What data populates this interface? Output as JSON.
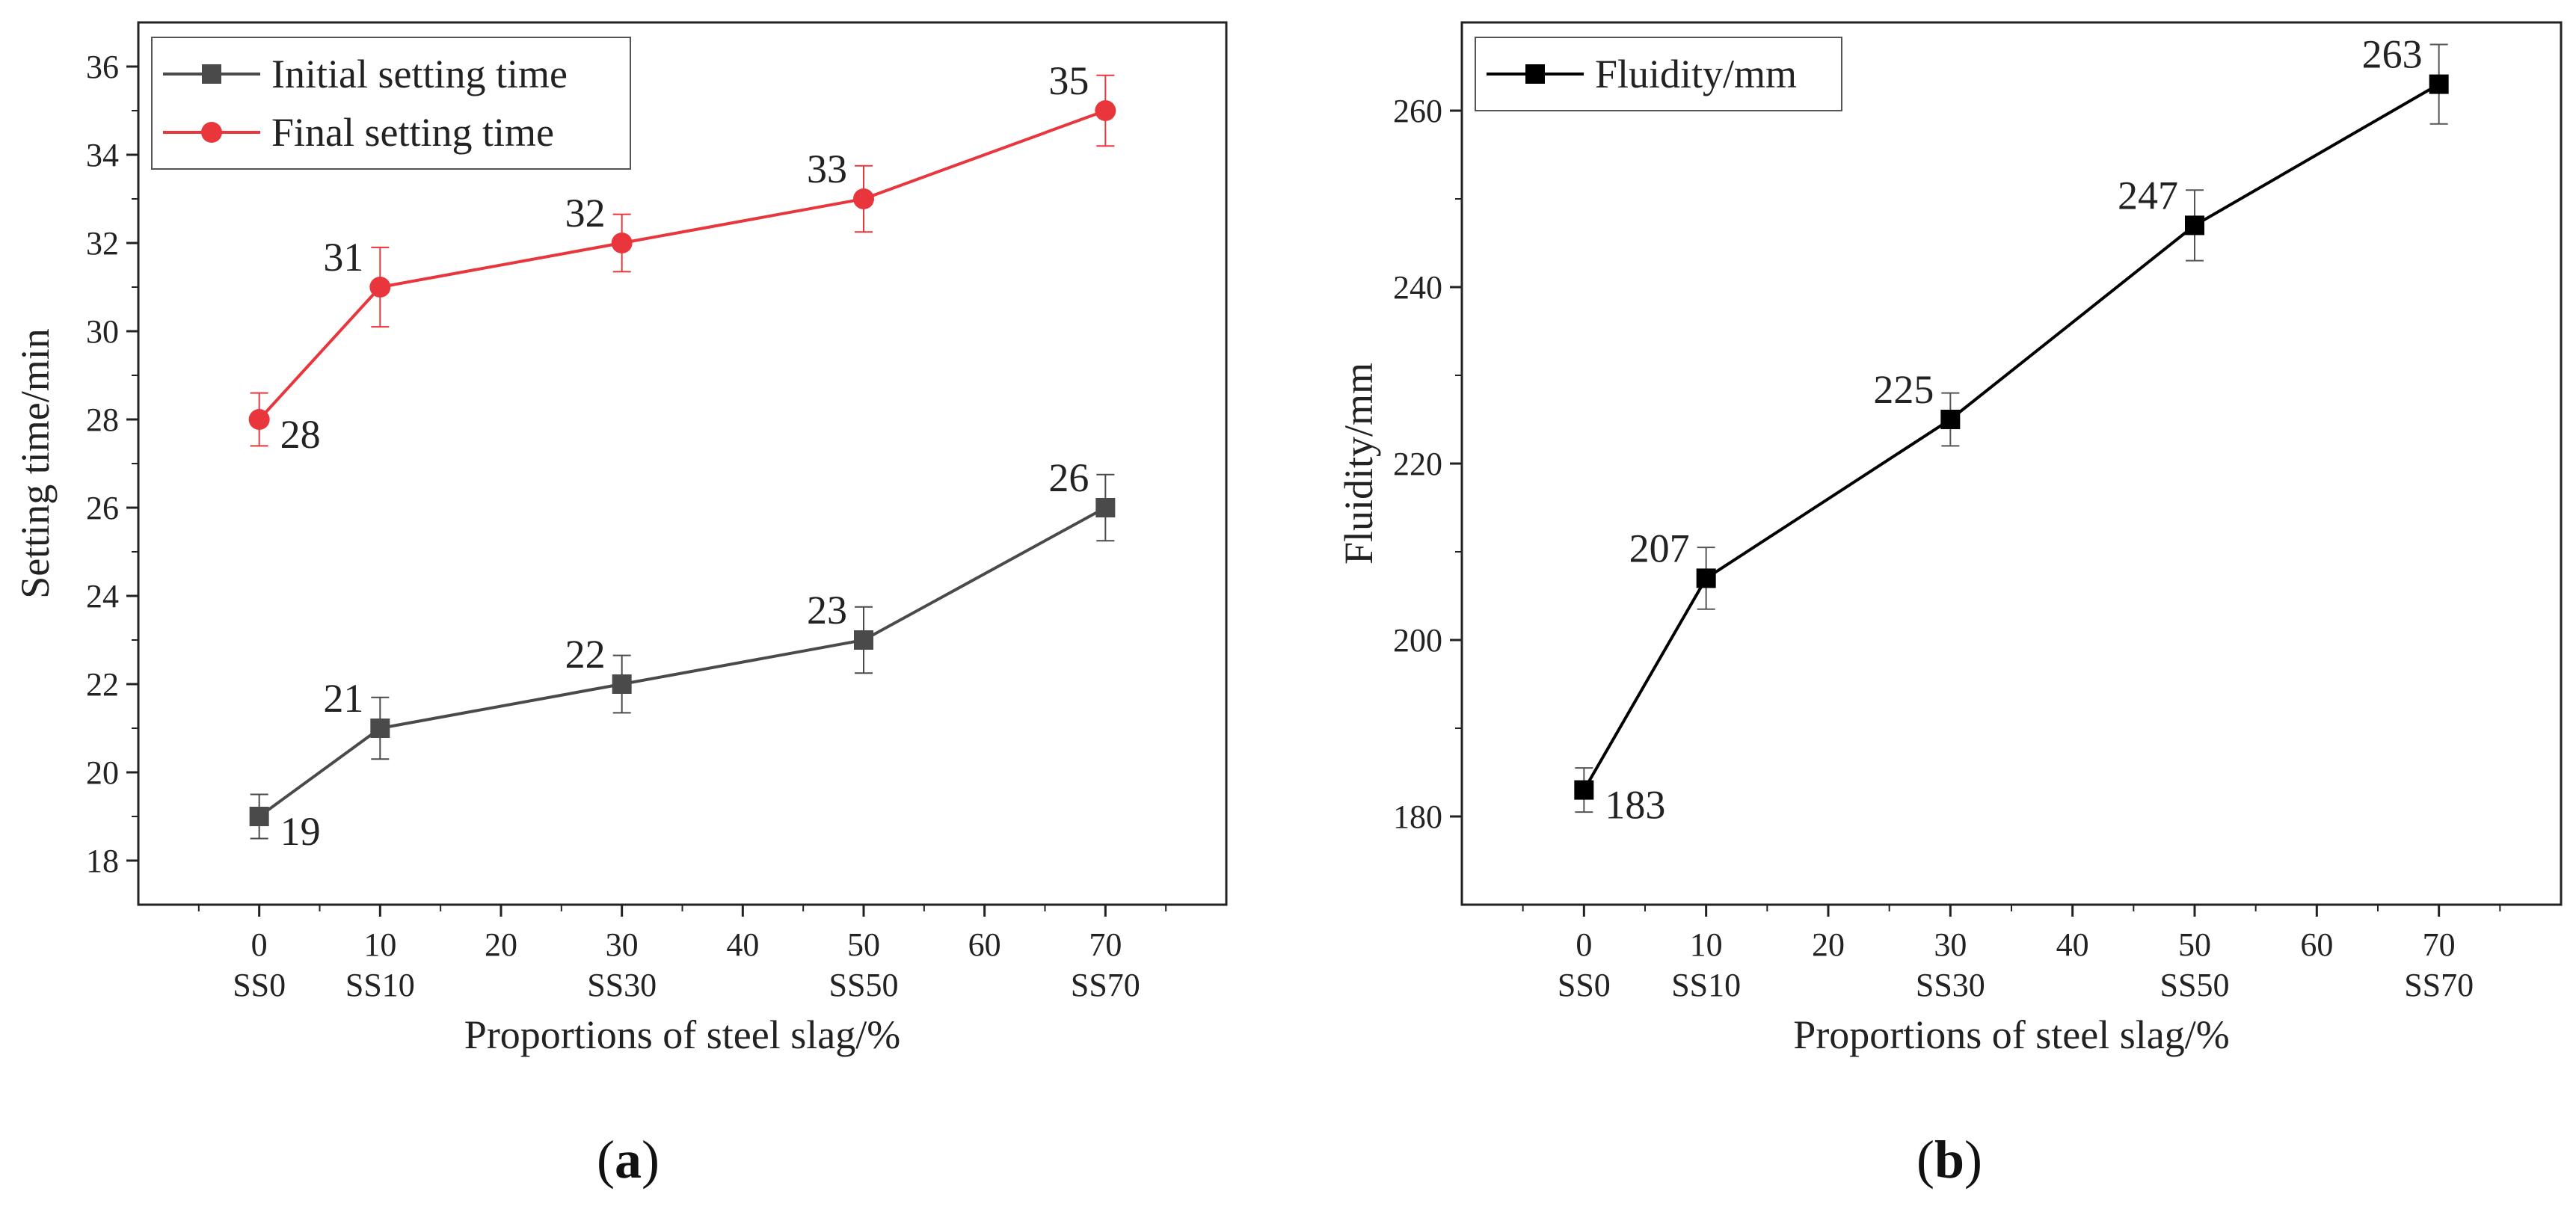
{
  "figure": {
    "panels": [
      "(a)",
      "(b)"
    ],
    "panel_letters": [
      "a",
      "b"
    ]
  },
  "chart_data": [
    {
      "type": "line",
      "panel": "(a)",
      "title": "",
      "xlabel": "Proportions of steel slag/%",
      "ylabel": "Setting time/min",
      "xlim": [
        -10,
        80
      ],
      "ylim": [
        17,
        37
      ],
      "x_ticks": [
        0,
        10,
        20,
        30,
        40,
        50,
        60,
        70
      ],
      "x_sub_labels": [
        {
          "x": 0,
          "label": "SS0"
        },
        {
          "x": 10,
          "label": "SS10"
        },
        {
          "x": 30,
          "label": "SS30"
        },
        {
          "x": 50,
          "label": "SS50"
        },
        {
          "x": 70,
          "label": "SS70"
        }
      ],
      "y_ticks": [
        18,
        20,
        22,
        24,
        26,
        28,
        30,
        32,
        34,
        36
      ],
      "legend_position": "top-left",
      "series": [
        {
          "name": "Initial setting time",
          "color": "#4a4a4a",
          "marker": "square",
          "x": [
            0,
            10,
            30,
            50,
            70
          ],
          "values": [
            19,
            21,
            22,
            23,
            26
          ],
          "errors": [
            0.5,
            0.7,
            0.65,
            0.75,
            0.75
          ],
          "labels": [
            "19",
            "21",
            "22",
            "23",
            "26"
          ],
          "label_offsets": [
            "below-right",
            "above-left",
            "above-left",
            "above-left",
            "above-left"
          ]
        },
        {
          "name": "Final setting time",
          "color": "#e8363c",
          "marker": "circle",
          "x": [
            0,
            10,
            30,
            50,
            70
          ],
          "values": [
            28,
            31,
            32,
            33,
            35
          ],
          "errors": [
            0.6,
            0.9,
            0.65,
            0.75,
            0.8
          ],
          "labels": [
            "28",
            "31",
            "32",
            "33",
            "35"
          ],
          "label_offsets": [
            "below-right",
            "above-left",
            "above-left",
            "above-left",
            "above-left"
          ]
        }
      ]
    },
    {
      "type": "line",
      "panel": "(b)",
      "title": "",
      "xlabel": "Proportions of steel slag/%",
      "ylabel": "Fluidity/mm",
      "xlim": [
        -10,
        80
      ],
      "ylim": [
        170,
        270
      ],
      "x_ticks": [
        0,
        10,
        20,
        30,
        40,
        50,
        60,
        70
      ],
      "x_sub_labels": [
        {
          "x": 0,
          "label": "SS0"
        },
        {
          "x": 10,
          "label": "SS10"
        },
        {
          "x": 30,
          "label": "SS30"
        },
        {
          "x": 50,
          "label": "SS50"
        },
        {
          "x": 70,
          "label": "SS70"
        }
      ],
      "y_ticks": [
        180,
        200,
        220,
        240,
        260
      ],
      "legend_position": "top-left",
      "series": [
        {
          "name": "Fluidity/mm",
          "color": "#000000",
          "marker": "square",
          "x": [
            0,
            10,
            30,
            50,
            70
          ],
          "values": [
            183,
            207,
            225,
            247,
            263
          ],
          "errors": [
            2.5,
            3.5,
            3.0,
            4.0,
            4.5
          ],
          "labels": [
            "183",
            "207",
            "225",
            "247",
            "263"
          ],
          "label_offsets": [
            "below-right",
            "above-left",
            "above-left",
            "above-left",
            "above-left"
          ]
        }
      ]
    }
  ]
}
